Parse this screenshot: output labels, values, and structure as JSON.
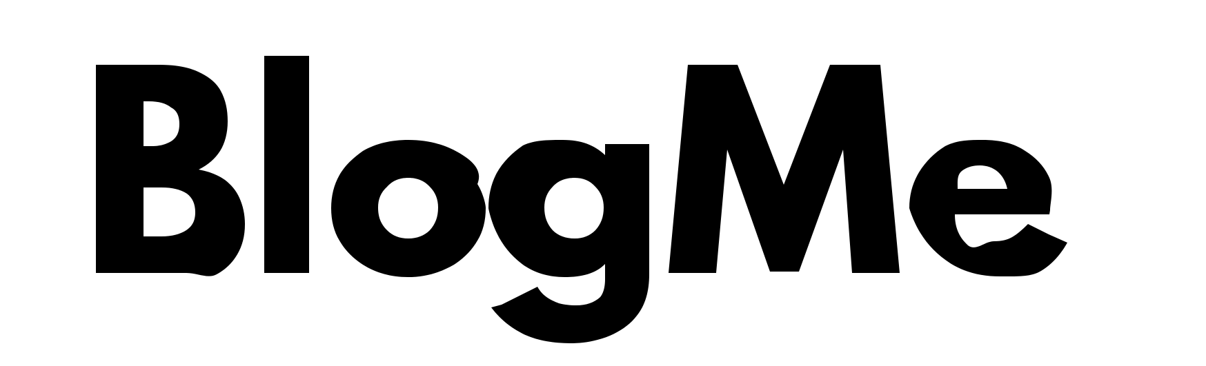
{
  "logo": {
    "wordmark_text": "BlogMe",
    "ink_color": "#000000",
    "background_color": "#ffffff"
  }
}
